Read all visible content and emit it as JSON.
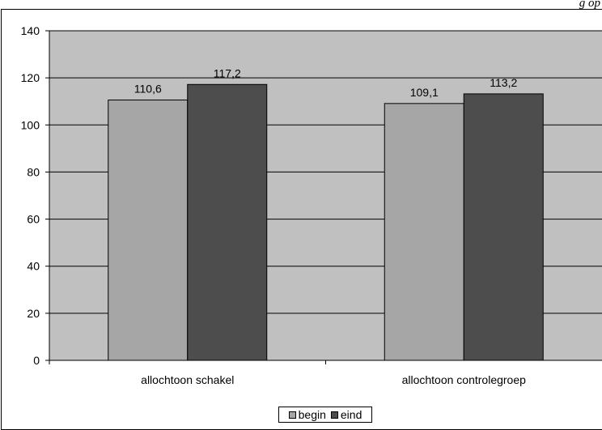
{
  "header": {
    "corner_text": "g op"
  },
  "colors": {
    "plot_bg": "#c0c0c0",
    "begin": "#a6a6a6",
    "eind": "#4d4d4d",
    "grid": "#000000"
  },
  "chart_data": {
    "type": "bar",
    "categories": [
      "allochtoon schakel",
      "allochtoon controlegroep"
    ],
    "series": [
      {
        "name": "begin",
        "values": [
          110.6,
          109.1
        ],
        "labels": [
          "110,6",
          "109,1"
        ]
      },
      {
        "name": "eind",
        "values": [
          117.2,
          113.2
        ],
        "labels": [
          "117,2",
          "113,2"
        ]
      }
    ],
    "ylim": [
      0,
      140
    ],
    "yticks": [
      0,
      20,
      40,
      60,
      80,
      100,
      120,
      140
    ],
    "grid": true,
    "legend": "bottom"
  }
}
